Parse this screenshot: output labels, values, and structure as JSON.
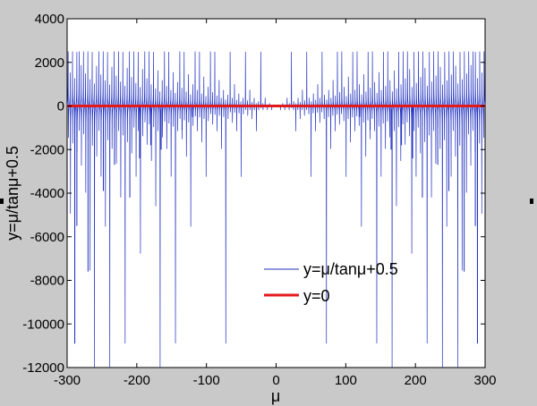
{
  "chart_data": {
    "type": "line",
    "title": "",
    "xlabel": "μ",
    "ylabel": "y=μ/tanμ+0.5",
    "xlim": [
      -300,
      300
    ],
    "ylim": [
      -12000,
      4000
    ],
    "x_ticks": [
      -300,
      -200,
      -100,
      0,
      100,
      200,
      300
    ],
    "y_ticks": [
      4000,
      2000,
      0,
      -2000,
      -4000,
      -6000,
      -8000,
      -10000,
      -12000
    ],
    "grid": false,
    "legend_position": "inside-lower-right",
    "background_color": "#c9c9c9",
    "plot_background_color": "#ffffff",
    "series": [
      {
        "name": "y=μ/tanμ+0.5",
        "color": "#1f2fbf",
        "function": "x/tan(x)+0.5",
        "x_range": [
          -300,
          300
        ],
        "clip": [
          -12000,
          2500
        ],
        "sampled_extremes": [
          {
            "x": -289,
            "y": -10900
          },
          {
            "x": -286,
            "y": -5500
          },
          {
            "x": -270,
            "y": -7600
          },
          {
            "x": -248,
            "y": -3900
          },
          {
            "x": -232,
            "y": -2700
          },
          {
            "x": -210,
            "y": -4200
          },
          {
            "x": -196,
            "y": -2400
          },
          {
            "x": -180,
            "y": -1800
          },
          {
            "x": -165,
            "y": -2000
          },
          {
            "x": -135,
            "y": -1100
          },
          {
            "x": -120,
            "y": -500
          },
          {
            "x": 120,
            "y": -500
          },
          {
            "x": 135,
            "y": -1100
          },
          {
            "x": 165,
            "y": -2000
          },
          {
            "x": 180,
            "y": -1800
          },
          {
            "x": 196,
            "y": -2400
          },
          {
            "x": 210,
            "y": -4200
          },
          {
            "x": 232,
            "y": -2700
          },
          {
            "x": 248,
            "y": -3900
          },
          {
            "x": 270,
            "y": -7600
          },
          {
            "x": 286,
            "y": -5500
          },
          {
            "x": 289,
            "y": -10900
          }
        ]
      },
      {
        "name": "y=0",
        "color": "#e31a1c",
        "function": "0",
        "x_range": [
          -300,
          300
        ]
      }
    ]
  }
}
